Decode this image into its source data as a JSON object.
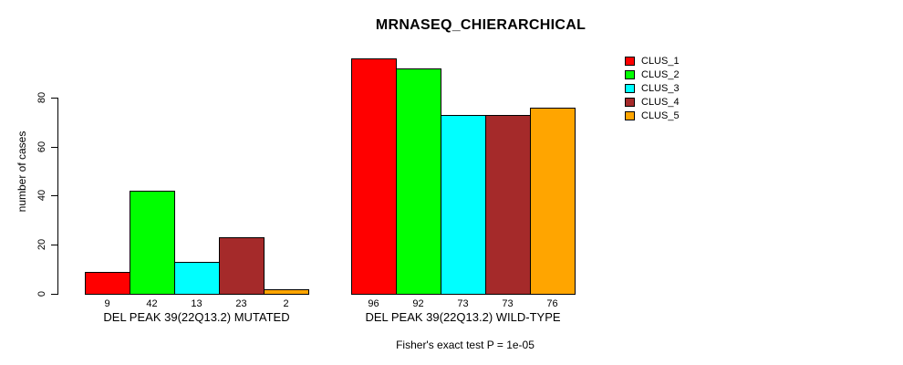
{
  "chart_data": {
    "type": "bar",
    "title": "MRNASEQ_CHIERARCHICAL",
    "ylabel": "number of cases",
    "xlabel": "",
    "subtitle": "Fisher's exact test P = 1e-05",
    "ytick_labels": [
      0,
      20,
      40,
      60,
      80
    ],
    "ylim": [
      0,
      100
    ],
    "grid": false,
    "legend_position": "right",
    "series_names": [
      "CLUS_1",
      "CLUS_2",
      "CLUS_3",
      "CLUS_4",
      "CLUS_5"
    ],
    "colors": [
      "#FF0000",
      "#00FF00",
      "#00FFFF",
      "#A52A2A",
      "#FFA500"
    ],
    "groups": [
      {
        "label": "DEL PEAK 39(22Q13.2) MUTATED",
        "values": [
          9,
          42,
          13,
          23,
          2
        ]
      },
      {
        "label": "DEL PEAK 39(22Q13.2) WILD-TYPE",
        "values": [
          96,
          92,
          73,
          73,
          76
        ]
      }
    ]
  }
}
